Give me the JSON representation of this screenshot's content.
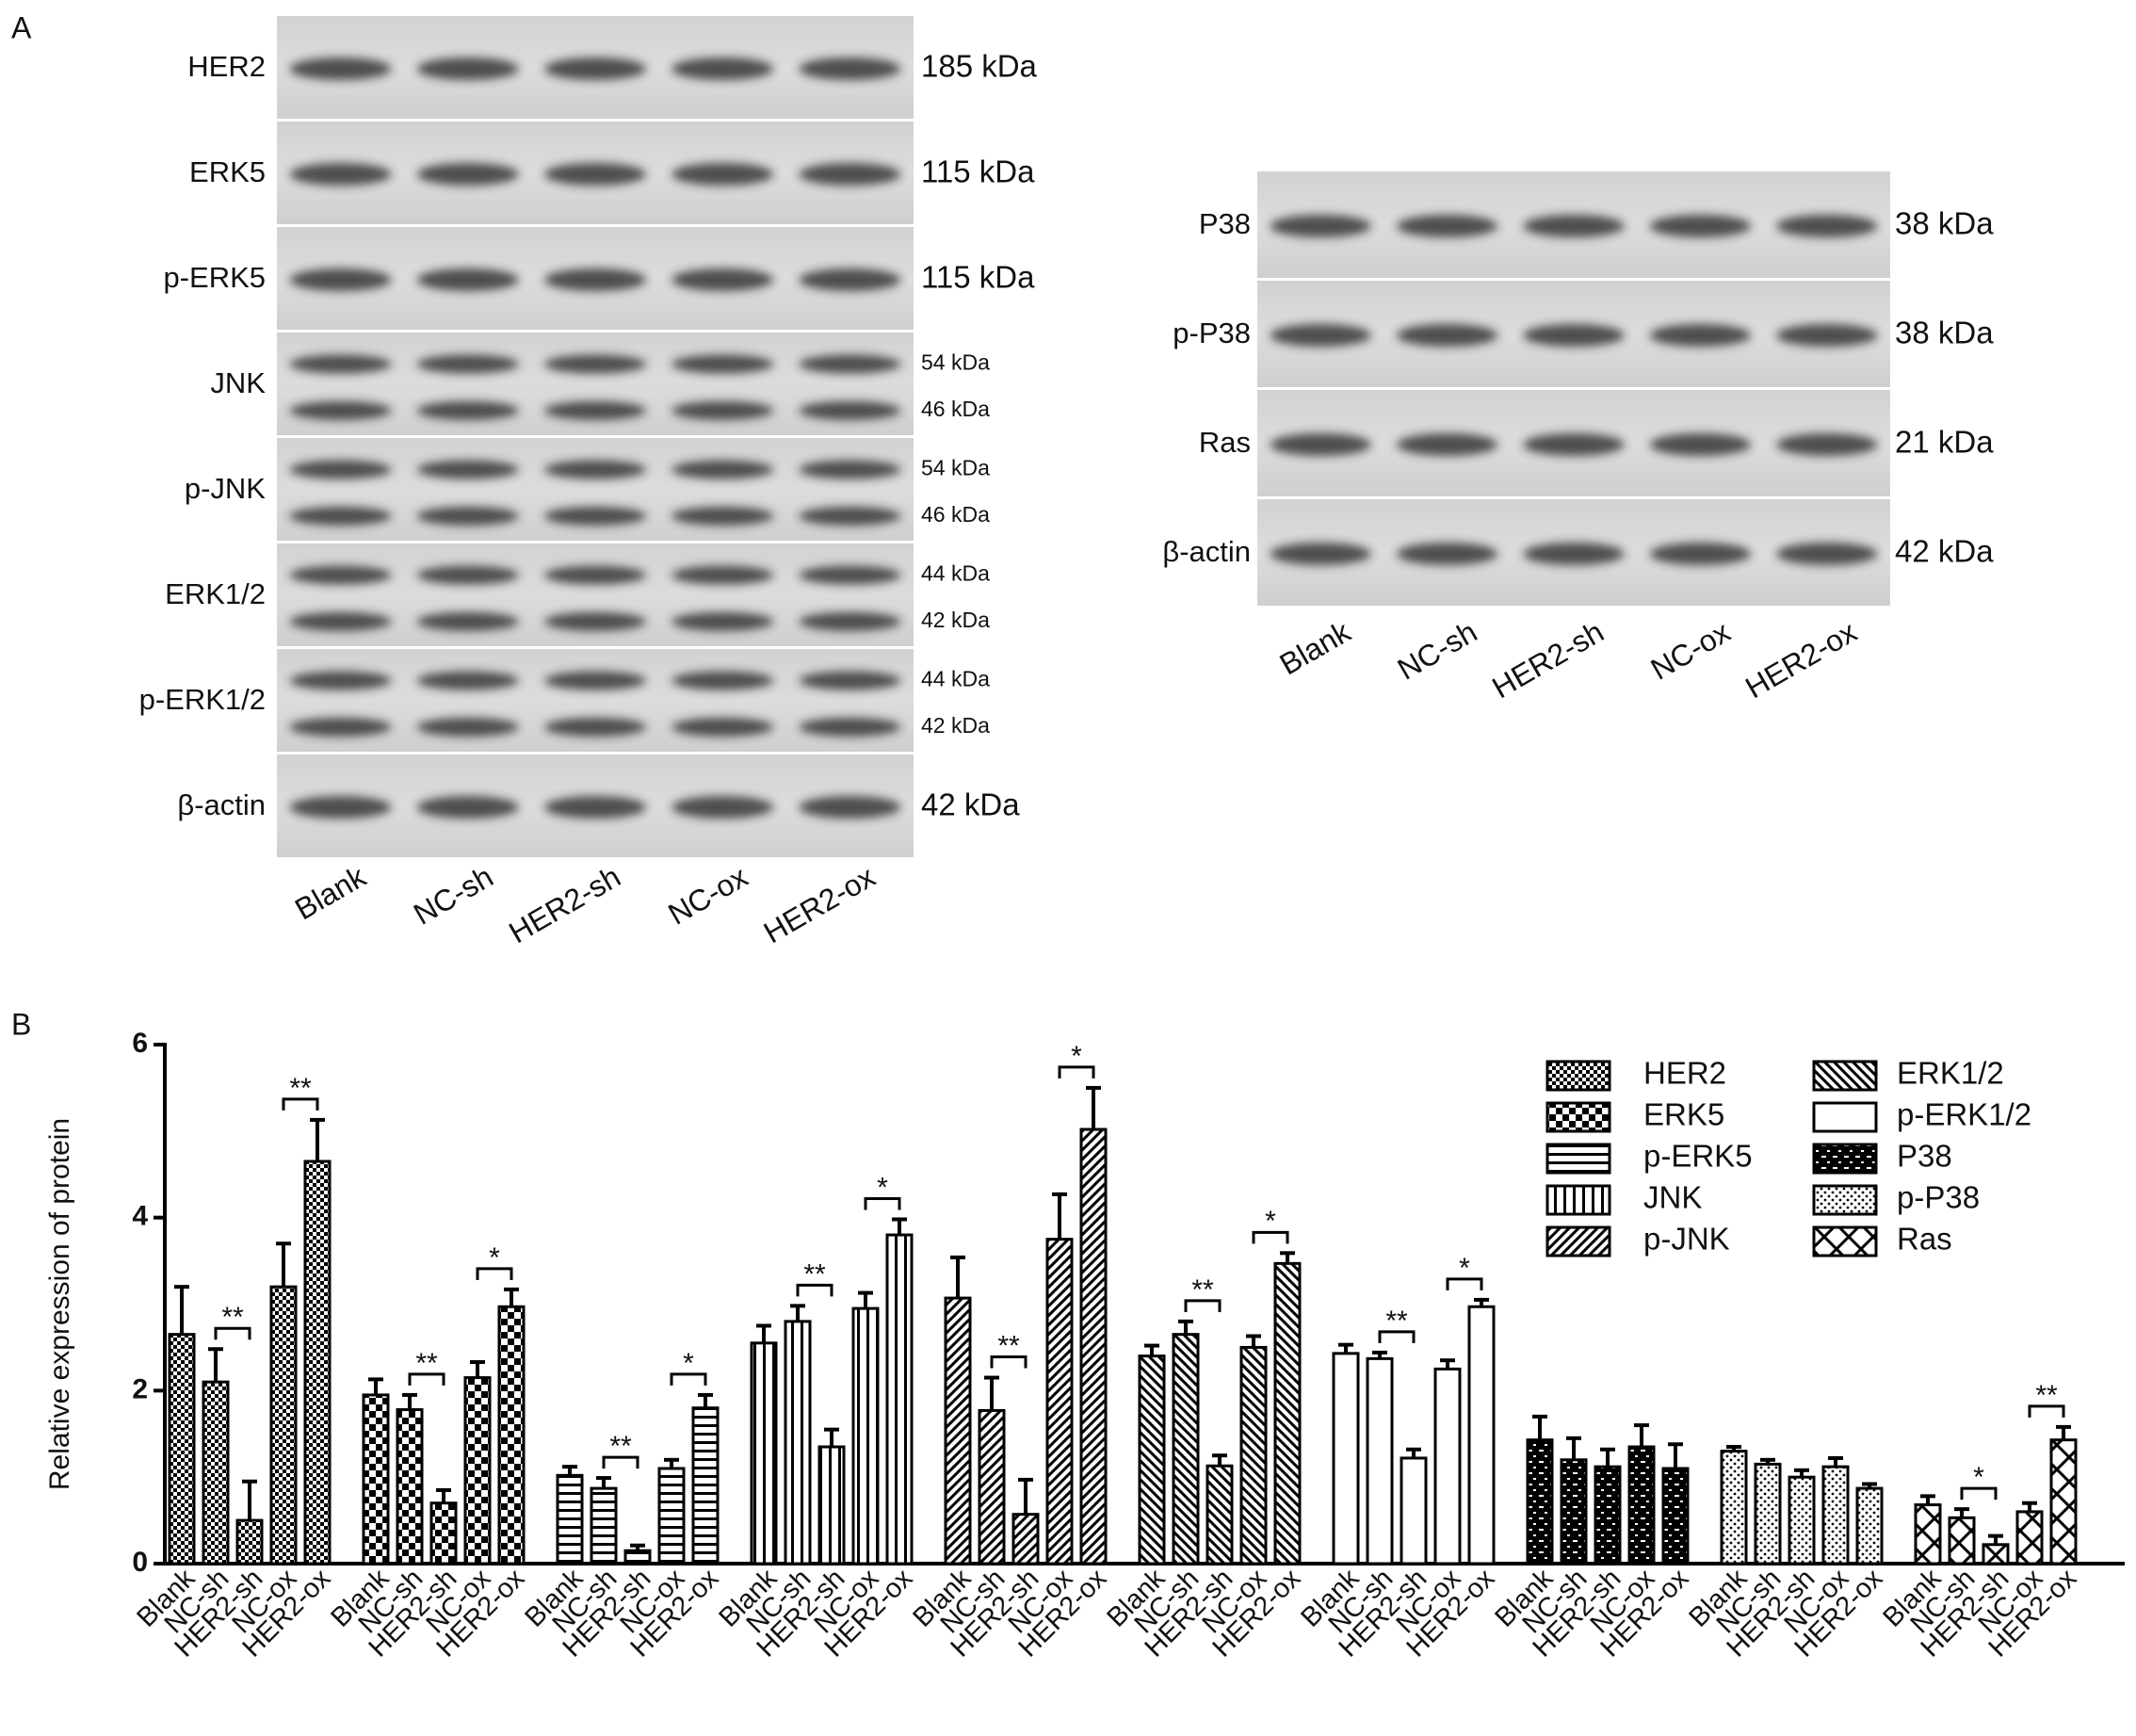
{
  "panel_a": {
    "label": "A",
    "blot_left": {
      "proteins": [
        {
          "name": "HER2",
          "sizes": [
            "185 kDa"
          ]
        },
        {
          "name": "ERK5",
          "sizes": [
            "115 kDa"
          ]
        },
        {
          "name": "p-ERK5",
          "sizes": [
            "115 kDa"
          ]
        },
        {
          "name": "JNK",
          "sizes": [
            "54 kDa",
            "46 kDa"
          ]
        },
        {
          "name": "p-JNK",
          "sizes": [
            "54 kDa",
            "46 kDa"
          ]
        },
        {
          "name": "ERK1/2",
          "sizes": [
            "44 kDa",
            "42 kDa"
          ]
        },
        {
          "name": "p-ERK1/2",
          "sizes": [
            "44 kDa",
            "42 kDa"
          ]
        },
        {
          "name": "β-actin",
          "sizes": [
            "42 kDa"
          ]
        }
      ],
      "lanes": [
        "Blank",
        "NC-sh",
        "HER2-sh",
        "NC-ox",
        "HER2-ox"
      ]
    },
    "blot_right": {
      "proteins": [
        {
          "name": "P38",
          "sizes": [
            "38 kDa"
          ]
        },
        {
          "name": "p-P38",
          "sizes": [
            "38 kDa"
          ]
        },
        {
          "name": "Ras",
          "sizes": [
            "21 kDa"
          ]
        },
        {
          "name": "β-actin",
          "sizes": [
            "42 kDa"
          ]
        }
      ],
      "lanes": [
        "Blank",
        "NC-sh",
        "HER2-sh",
        "NC-ox",
        "HER2-ox"
      ]
    }
  },
  "panel_b_label": "B",
  "chart_data": {
    "type": "bar",
    "ylabel": "Relative expression of protein",
    "categories": [
      "Blank",
      "NC-sh",
      "HER2-sh",
      "NC-ox",
      "HER2-ox"
    ],
    "ylim": [
      0,
      6
    ],
    "yticks": [
      0,
      2,
      4,
      6
    ],
    "series": [
      {
        "name": "HER2",
        "color": "#000000",
        "pattern": "checker-fine",
        "values": [
          2.65,
          2.1,
          0.5,
          3.2,
          4.65
        ],
        "errors": [
          0.55,
          0.38,
          0.45,
          0.5,
          0.48
        ],
        "significance": {
          "sh": "**",
          "ox": "**"
        }
      },
      {
        "name": "ERK5",
        "color": "#000000",
        "pattern": "checker",
        "values": [
          1.95,
          1.78,
          0.7,
          2.15,
          2.97
        ],
        "errors": [
          0.18,
          0.17,
          0.15,
          0.18,
          0.2
        ],
        "significance": {
          "sh": "**",
          "ox": "*"
        }
      },
      {
        "name": "p-ERK5",
        "color": "#000000",
        "pattern": "hlines",
        "values": [
          1.02,
          0.87,
          0.15,
          1.1,
          1.8
        ],
        "errors": [
          0.1,
          0.12,
          0.06,
          0.1,
          0.15
        ],
        "significance": {
          "sh": "**",
          "ox": "*"
        }
      },
      {
        "name": "JNK",
        "color": "#000000",
        "pattern": "vlines",
        "values": [
          2.55,
          2.8,
          1.35,
          2.95,
          3.8
        ],
        "errors": [
          0.2,
          0.18,
          0.2,
          0.18,
          0.18
        ],
        "significance": {
          "sh": "**",
          "ox": "*"
        }
      },
      {
        "name": "p-JNK",
        "color": "#000000",
        "pattern": "diag",
        "values": [
          3.07,
          1.77,
          0.57,
          3.75,
          5.02
        ],
        "errors": [
          0.47,
          0.38,
          0.4,
          0.52,
          0.48
        ],
        "significance": {
          "sh": "**",
          "ox": "*"
        }
      },
      {
        "name": "ERK1/2",
        "color": "#000000",
        "pattern": "diag-back",
        "values": [
          2.4,
          2.65,
          1.13,
          2.5,
          3.47
        ],
        "errors": [
          0.12,
          0.15,
          0.12,
          0.13,
          0.12
        ],
        "significance": {
          "sh": "**",
          "ox": "*"
        }
      },
      {
        "name": "p-ERK1/2",
        "color": "#000000",
        "pattern": "white",
        "values": [
          2.43,
          2.37,
          1.22,
          2.25,
          2.97
        ],
        "errors": [
          0.1,
          0.07,
          0.1,
          0.1,
          0.08
        ],
        "significance": {
          "sh": "**",
          "ox": "*"
        }
      },
      {
        "name": "P38",
        "color": "#000000",
        "pattern": "dash-grid",
        "values": [
          1.43,
          1.2,
          1.12,
          1.35,
          1.1
        ],
        "errors": [
          0.27,
          0.25,
          0.2,
          0.25,
          0.28
        ]
      },
      {
        "name": "p-P38",
        "color": "#000000",
        "pattern": "speckle",
        "values": [
          1.3,
          1.15,
          1.0,
          1.12,
          0.87
        ],
        "errors": [
          0.05,
          0.05,
          0.08,
          0.1,
          0.05
        ]
      },
      {
        "name": "Ras",
        "color": "#000000",
        "pattern": "cross",
        "values": [
          0.68,
          0.53,
          0.22,
          0.6,
          1.43
        ],
        "errors": [
          0.1,
          0.1,
          0.1,
          0.1,
          0.15
        ],
        "significance": {
          "sh": "*",
          "ox": "**"
        }
      }
    ]
  }
}
